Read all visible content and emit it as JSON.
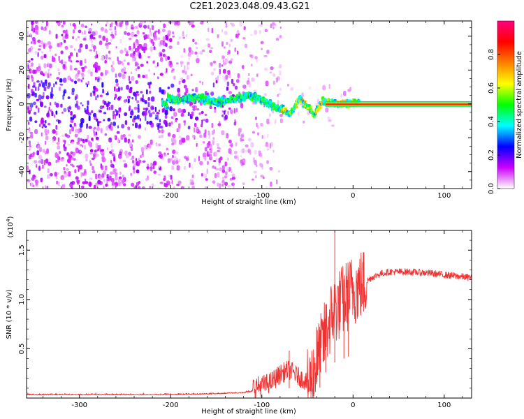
{
  "title": "C2E1.2023.048.09.43.G21",
  "chart_data": [
    {
      "type": "heatmap",
      "xlabel": "Height of straight line (km)",
      "ylabel": "Frequency (Hz)",
      "xlim": [
        -358,
        130
      ],
      "ylim": [
        -50,
        49
      ],
      "xticks": [
        -300,
        -200,
        -100,
        0,
        100
      ],
      "yticks": [
        -40,
        -20,
        0,
        20,
        40
      ],
      "ridge": {
        "x": [
          -205,
          -190,
          -175,
          -160,
          -145,
          -130,
          -115,
          -100,
          -90,
          -80,
          -70,
          -60,
          -50,
          -45,
          -40,
          -35,
          -25,
          -15,
          -5,
          0,
          20,
          60,
          100,
          130
        ],
        "y": [
          3,
          2,
          4,
          2,
          1,
          3,
          5,
          2,
          -1,
          -3,
          -6,
          3,
          -2,
          -7,
          -3,
          2,
          1,
          0,
          0,
          1,
          0,
          0,
          0,
          0
        ]
      },
      "colorbar": {
        "label": "Normalized spectral amplitude",
        "range": [
          0,
          1
        ],
        "ticks": [
          0.0,
          0.2,
          0.4,
          0.6,
          0.8
        ],
        "stops": [
          "#ffffff",
          "#cc00ff",
          "#0000ff",
          "#00ffff",
          "#00ff00",
          "#ffff00",
          "#ff7f00",
          "#ff0000",
          "#ff0080"
        ]
      }
    },
    {
      "type": "line",
      "xlabel": "Height of straight line (km)",
      "ylabel": "SNR (10 * v/v)",
      "multiplier": "(x10",
      "multiplier_exp": "4",
      "multiplier_close": ")",
      "xlim": [
        -358,
        130
      ],
      "ylim": [
        0,
        1.7
      ],
      "xticks": [
        -300,
        -200,
        -100,
        0,
        100
      ],
      "yticks": [
        0.5,
        1.0,
        1.5
      ],
      "ytick_labels": [
        "0.5",
        "1.0",
        "1.5"
      ],
      "color": "#ee3333",
      "series": [
        {
          "x": [
            -358,
            -300,
            -200,
            -150,
            -120,
            -100,
            -90,
            -80,
            -70,
            -60,
            -50,
            -45,
            -40,
            -35,
            -30,
            -25,
            -20,
            -15,
            -10,
            -5,
            0,
            10,
            20,
            30,
            40,
            60,
            80,
            100,
            120,
            130
          ],
          "y": [
            0.03,
            0.03,
            0.03,
            0.04,
            0.05,
            0.08,
            0.12,
            0.2,
            0.25,
            0.18,
            0.12,
            0.2,
            0.35,
            0.5,
            0.65,
            0.8,
            0.9,
            0.95,
            1.0,
            1.05,
            1.1,
            1.15,
            1.22,
            1.26,
            1.28,
            1.28,
            1.27,
            1.25,
            1.23,
            1.22
          ]
        }
      ],
      "spikes": [
        {
          "x": -70,
          "y": 0.48
        },
        {
          "x": -40,
          "y": 0.72
        },
        {
          "x": -30,
          "y": 0.95
        },
        {
          "x": -20,
          "y": 1.7
        },
        {
          "x": -10,
          "y": 1.2
        },
        {
          "x": -5,
          "y": 1.18
        }
      ]
    }
  ]
}
